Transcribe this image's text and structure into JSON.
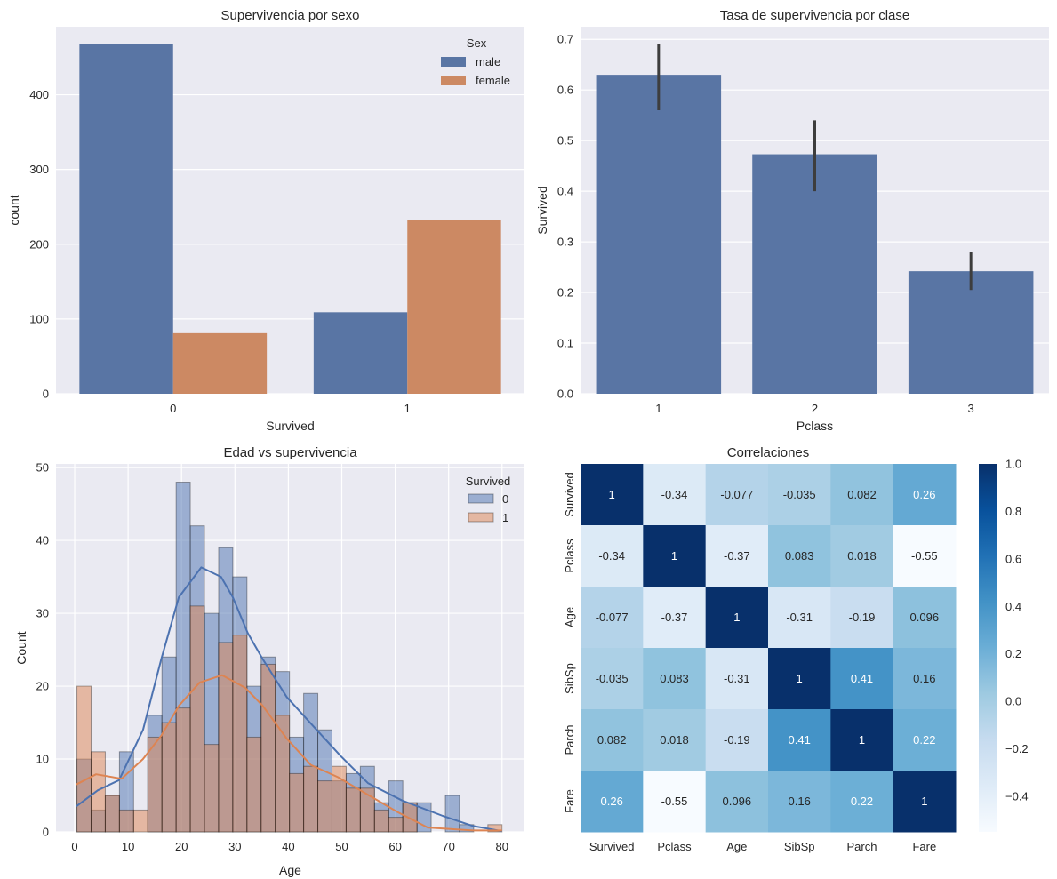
{
  "chart_data": [
    {
      "type": "bar",
      "title": "Supervivencia por sexo",
      "xlabel": "Survived",
      "ylabel": "count",
      "categories": [
        "0",
        "1"
      ],
      "ylim": [
        0,
        491
      ],
      "yticks": [
        0,
        100,
        200,
        300,
        400
      ],
      "grid": true,
      "legend": {
        "title": "Sex",
        "placement": "top-right"
      },
      "series": [
        {
          "name": "male",
          "color": "#5975a4",
          "values": [
            468,
            109
          ]
        },
        {
          "name": "female",
          "color": "#cc8963",
          "values": [
            81,
            233
          ]
        }
      ]
    },
    {
      "type": "bar",
      "title": "Tasa de supervivencia por clase",
      "xlabel": "Pclass",
      "ylabel": "Survived",
      "categories": [
        "1",
        "2",
        "3"
      ],
      "ylim": [
        0,
        0.725
      ],
      "yticks": [
        "0.0",
        "0.1",
        "0.2",
        "0.3",
        "0.4",
        "0.5",
        "0.6",
        "0.7"
      ],
      "grid": true,
      "color": "#5975a4",
      "values": [
        0.63,
        0.473,
        0.242
      ],
      "error_low": [
        0.56,
        0.4,
        0.205
      ],
      "error_high": [
        0.69,
        0.54,
        0.28
      ]
    },
    {
      "type": "bar",
      "subtype": "histogram with kde",
      "title": "Edad vs supervivencia",
      "xlabel": "Age",
      "ylabel": "Count",
      "xlim": [
        -3.5,
        84.2
      ],
      "ylim": [
        0,
        50.5
      ],
      "xticks": [
        0,
        10,
        20,
        30,
        40,
        50,
        60,
        70,
        80
      ],
      "yticks": [
        0,
        10,
        20,
        30,
        40,
        50
      ],
      "grid": true,
      "legend": {
        "title": "Survived",
        "placement": "top-right"
      },
      "bin_range": [
        0.42,
        80
      ],
      "bins": 30,
      "series": [
        {
          "name": "0",
          "color": "#4c72b0",
          "counts": [
            10,
            3,
            5,
            11,
            0,
            16,
            24,
            48,
            42,
            30,
            39,
            35,
            20,
            24,
            22,
            13,
            19,
            14,
            7,
            8,
            9,
            4,
            7,
            4,
            4,
            0,
            5,
            1,
            0,
            0
          ],
          "kde": [
            [
              0.3,
              3.5
            ],
            [
              4.3,
              5.7
            ],
            [
              8.3,
              7.1
            ],
            [
              12.8,
              14
            ],
            [
              16.2,
              23.7
            ],
            [
              19.5,
              32.2
            ],
            [
              23.7,
              36.3
            ],
            [
              27.4,
              35
            ],
            [
              29.6,
              32.2
            ],
            [
              32.4,
              27.3
            ],
            [
              35.2,
              23.7
            ],
            [
              39.7,
              18.5
            ],
            [
              45.3,
              14
            ],
            [
              49.8,
              10.4
            ],
            [
              54.9,
              6.7
            ],
            [
              61.3,
              4.3
            ],
            [
              68.9,
              2.2
            ],
            [
              74.6,
              0.8
            ],
            [
              80,
              0.1
            ]
          ]
        },
        {
          "name": "1",
          "color": "#dd8452",
          "counts": [
            20,
            11,
            5,
            3,
            3,
            13,
            15,
            17,
            31,
            12,
            26,
            27,
            13,
            23,
            16,
            8,
            9,
            7,
            9,
            6,
            6,
            3,
            2,
            4,
            0,
            0,
            0,
            0,
            0,
            1
          ],
          "kde": [
            [
              0.3,
              6.5
            ],
            [
              4,
              7.9
            ],
            [
              8.8,
              7.3
            ],
            [
              12.8,
              10
            ],
            [
              16.2,
              13.2
            ],
            [
              19.5,
              17.3
            ],
            [
              23.4,
              20.5
            ],
            [
              27.6,
              21.5
            ],
            [
              31.9,
              19.8
            ],
            [
              35.2,
              17.3
            ],
            [
              39.7,
              12.8
            ],
            [
              44.2,
              9.2
            ],
            [
              49.3,
              7.5
            ],
            [
              54.9,
              5.1
            ],
            [
              60.5,
              2.7
            ],
            [
              66.1,
              0.6
            ],
            [
              74.6,
              0.2
            ],
            [
              80,
              0.2
            ]
          ]
        }
      ]
    },
    {
      "type": "heatmap",
      "title": "Correlaciones",
      "colormap": "Blues",
      "vmin": -0.55,
      "vmax": 1.0,
      "colorbar_ticks": [
        "1.0",
        "0.8",
        "0.6",
        "0.4",
        "0.2",
        "0.0",
        "−0.2",
        "−0.4"
      ],
      "colorbar_values": [
        1.0,
        0.8,
        0.6,
        0.4,
        0.2,
        0.0,
        -0.2,
        -0.4
      ],
      "labels": [
        "Survived",
        "Pclass",
        "Age",
        "SibSp",
        "Parch",
        "Fare"
      ],
      "values": [
        [
          1,
          -0.34,
          -0.077,
          -0.035,
          0.082,
          0.26
        ],
        [
          -0.34,
          1,
          -0.37,
          0.083,
          0.018,
          -0.55
        ],
        [
          -0.077,
          -0.37,
          1,
          -0.31,
          -0.19,
          0.096
        ],
        [
          -0.035,
          0.083,
          -0.31,
          1,
          0.41,
          0.16
        ],
        [
          0.082,
          0.018,
          -0.19,
          0.41,
          1,
          0.22
        ],
        [
          0.26,
          -0.55,
          0.096,
          0.16,
          0.22,
          1
        ]
      ]
    }
  ]
}
